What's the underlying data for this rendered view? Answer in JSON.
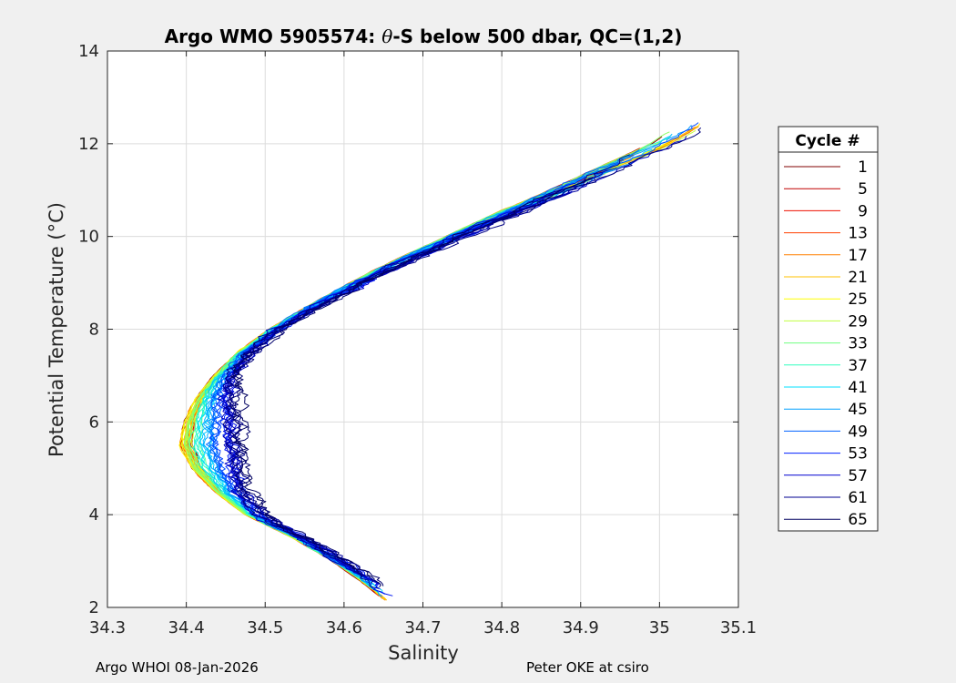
{
  "chart_data": {
    "type": "line",
    "title": "Argo WMO 5905574: θ-S below 500 dbar,  QC=(1,2)",
    "title_prefix": "Argo WMO 5905574: ",
    "title_symbol": "θ",
    "title_suffix": "-S below 500 dbar,  QC=(1,2)",
    "xlabel": "Salinity",
    "ylabel": "Potential Temperature (°C)",
    "xlim": [
      34.3,
      35.1
    ],
    "ylim": [
      2,
      14
    ],
    "xticks": [
      "34.3",
      "34.4",
      "34.5",
      "34.6",
      "34.7",
      "34.8",
      "34.9",
      "35",
      "35.1"
    ],
    "yticks": [
      "2",
      "4",
      "6",
      "8",
      "10",
      "12",
      "14"
    ],
    "grid": true,
    "legend_title": "Cycle #",
    "legend_position": "right",
    "legend": [
      {
        "label": "1",
        "color": "#800000"
      },
      {
        "label": "5",
        "color": "#c00000"
      },
      {
        "label": "9",
        "color": "#ee1000"
      },
      {
        "label": "13",
        "color": "#ff4000"
      },
      {
        "label": "17",
        "color": "#ff8000"
      },
      {
        "label": "21",
        "color": "#ffc000"
      },
      {
        "label": "25",
        "color": "#ffff00"
      },
      {
        "label": "29",
        "color": "#c0ff40"
      },
      {
        "label": "33",
        "color": "#70ff80"
      },
      {
        "label": "37",
        "color": "#30ffc0"
      },
      {
        "label": "41",
        "color": "#00e0ff"
      },
      {
        "label": "45",
        "color": "#00a0ff"
      },
      {
        "label": "49",
        "color": "#0060ff"
      },
      {
        "label": "53",
        "color": "#0020ff"
      },
      {
        "label": "57",
        "color": "#0000d0"
      },
      {
        "label": "61",
        "color": "#000090"
      },
      {
        "label": "65",
        "color": "#000060"
      }
    ],
    "base_profile": {
      "theta": [
        2.1,
        2.6,
        3.0,
        3.5,
        4.0,
        4.5,
        5.0,
        5.5,
        6.0,
        6.5,
        7.0,
        7.5,
        8.0,
        8.5,
        9.0,
        9.5,
        10.0,
        10.5,
        11.0,
        11.5,
        12.0,
        12.4
      ],
      "salinity": [
        34.655,
        34.62,
        34.585,
        34.535,
        34.475,
        34.435,
        34.405,
        34.39,
        34.395,
        34.41,
        34.435,
        34.465,
        34.505,
        34.555,
        34.61,
        34.67,
        34.735,
        34.8,
        34.87,
        34.935,
        35.0,
        35.04
      ]
    }
  },
  "footer": {
    "left": "Argo WHOI 08-Jan-2026",
    "right": "Peter OKE at csiro"
  }
}
